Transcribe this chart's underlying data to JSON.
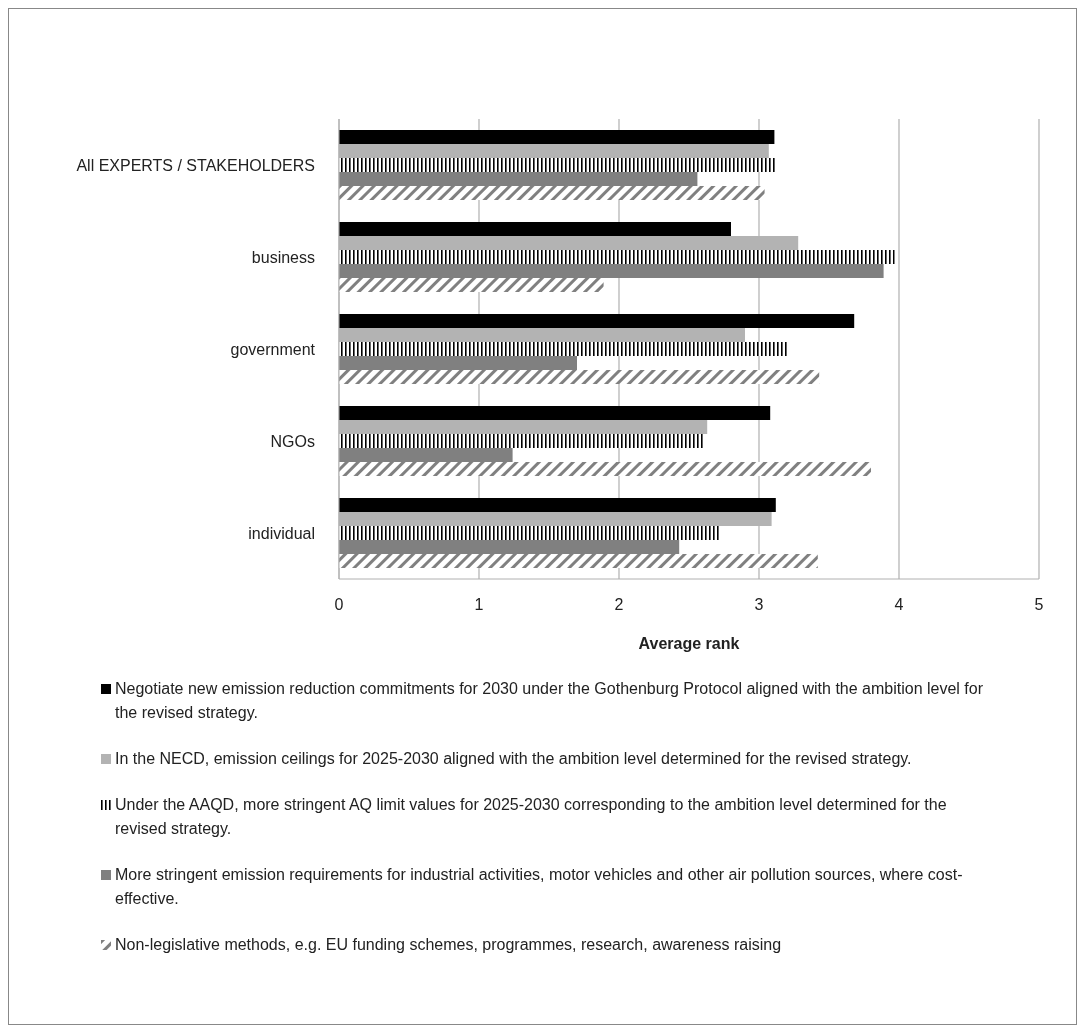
{
  "chart_data": {
    "type": "bar",
    "orientation": "horizontal",
    "xlabel": "Average rank",
    "categories": [
      "All EXPERTS / STAKEHOLDERS",
      "business",
      "government",
      "NGOs",
      "individual"
    ],
    "series": [
      {
        "name": "Negotiate new emission reduction commitments for 2030 under the Gothenburg Protocol aligned with the ambition level for the revised strategy.",
        "color": "#000000",
        "values": [
          3.11,
          2.8,
          3.68,
          3.08,
          3.12
        ]
      },
      {
        "name": "In the NECD, emission ceilings for 2025-2030 aligned with the ambition level determined for the revised strategy.",
        "color": "#b3b3b3",
        "values": [
          3.07,
          3.28,
          2.9,
          2.63,
          3.09
        ]
      },
      {
        "name": "Under the AAQD, more stringent  AQ limit values for  2025-2030 corresponding to the ambition level determined for the revised strategy.",
        "color": "#000000",
        "values": [
          3.12,
          3.97,
          3.21,
          2.6,
          2.72
        ]
      },
      {
        "name": "More stringent emission requirements for industrial activities, motor vehicles and other air pollution sources, where cost-effective.",
        "color": "#808080",
        "values": [
          2.56,
          3.89,
          1.7,
          1.24,
          2.43
        ]
      },
      {
        "name": "Non-legislative methods, e.g. EU funding schemes, programmes, research, awareness raising",
        "color": "#808080",
        "values": [
          3.04,
          1.89,
          3.43,
          3.8,
          3.42
        ]
      }
    ],
    "xlim": [
      0,
      5
    ],
    "xticks": [
      0,
      1,
      2,
      3,
      4,
      5
    ],
    "grid": "x",
    "legend": "bottom"
  }
}
